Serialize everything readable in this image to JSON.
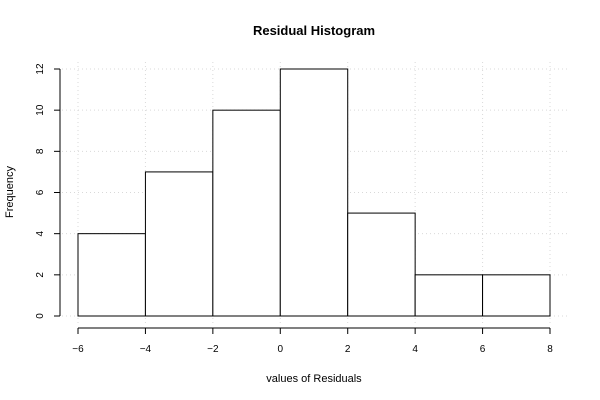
{
  "chart_data": {
    "type": "bar",
    "subtype": "histogram",
    "title": "Residual Histogram",
    "xlabel": "values of Residuals",
    "ylabel": "Frequency",
    "bins": [
      {
        "x0": -6,
        "x1": -4,
        "count": 4
      },
      {
        "x0": -4,
        "x1": -2,
        "count": 7
      },
      {
        "x0": -2,
        "x1": 0,
        "count": 10
      },
      {
        "x0": 0,
        "x1": 2,
        "count": 12
      },
      {
        "x0": 2,
        "x1": 4,
        "count": 5
      },
      {
        "x0": 4,
        "x1": 6,
        "count": 2
      },
      {
        "x0": 6,
        "x1": 8,
        "count": 2
      }
    ],
    "xlim": [
      -6,
      8
    ],
    "ylim": [
      0,
      12
    ],
    "xticks": [
      -6,
      -4,
      -2,
      0,
      2,
      4,
      6,
      8
    ],
    "yticks": [
      0,
      2,
      4,
      6,
      8,
      10,
      12
    ],
    "grid": true,
    "colors": {
      "bar_fill": "#ffffff",
      "bar_stroke": "#000000",
      "grid": "#d9d9d9"
    }
  }
}
